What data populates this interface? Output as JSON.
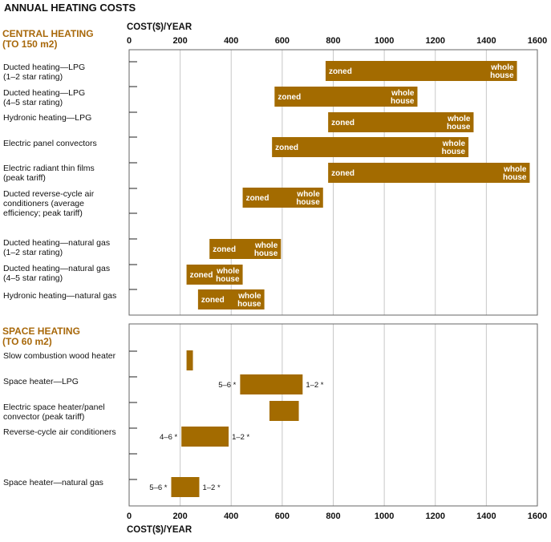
{
  "title": "ANNUAL HEATING COSTS",
  "colors": {
    "bar": "#a36b00",
    "section": "#a8680a",
    "grid": "#c8c8c8",
    "frame": "#666666"
  },
  "chart_data": [
    {
      "type": "bar",
      "orientation": "horizontal-range",
      "section_title": [
        "CENTRAL HEATING",
        "(TO 150 m2)"
      ],
      "xlabel": "COST($)/YEAR",
      "xlim": [
        0,
        1600
      ],
      "xticks": [
        "0",
        "200",
        "400",
        "600",
        "800",
        "1000",
        "1200",
        "1400",
        "1600"
      ],
      "grid": "vertical",
      "categories": [
        {
          "label": [
            "Ducted heating—LPG",
            "(1–2 star rating)"
          ],
          "start": 770,
          "end": 1520,
          "left_text": "zoned",
          "right_text": [
            "whole",
            "house"
          ]
        },
        {
          "label": [
            "Ducted heating—LPG",
            "(4–5 star rating)"
          ],
          "start": 570,
          "end": 1130,
          "left_text": "zoned",
          "right_text": [
            "whole",
            "house"
          ]
        },
        {
          "label": [
            "Hydronic heating—LPG"
          ],
          "start": 780,
          "end": 1350,
          "left_text": "zoned",
          "right_text": [
            "whole",
            "house"
          ]
        },
        {
          "label": [
            "Electric panel convectors"
          ],
          "start": 560,
          "end": 1330,
          "left_text": "zoned",
          "right_text": [
            "whole",
            "house"
          ]
        },
        {
          "label": [
            "Electric radiant thin films",
            "(peak tariff)"
          ],
          "start": 780,
          "end": 1570,
          "left_text": "zoned",
          "right_text": [
            "whole",
            "house"
          ]
        },
        {
          "label": [
            "Ducted reverse-cycle air",
            "conditioners (average",
            "efficiency; peak tariff)"
          ],
          "start": 445,
          "end": 760,
          "left_text": "zoned",
          "right_text": [
            "whole",
            "house"
          ]
        },
        {
          "label": [
            "Ducted heating—natural gas",
            "(1–2 star rating)"
          ],
          "start": 315,
          "end": 595,
          "left_text": "zoned",
          "right_text": [
            "whole",
            "house"
          ]
        },
        {
          "label": [
            "Ducted heating—natural gas",
            "(4–5 star rating)"
          ],
          "start": 225,
          "end": 445,
          "left_text": "zoned",
          "right_text": [
            "whole",
            "house"
          ]
        },
        {
          "label": [
            "Hydronic heating—natural gas"
          ],
          "start": 270,
          "end": 530,
          "left_text": "zoned",
          "right_text": [
            "whole",
            "house"
          ]
        }
      ]
    },
    {
      "type": "bar",
      "orientation": "horizontal-range",
      "section_title": [
        "SPACE HEATING",
        "(TO 60 m2)"
      ],
      "xlabel": "COST($)/YEAR",
      "xlim": [
        0,
        1600
      ],
      "xticks": [
        "0",
        "200",
        "400",
        "600",
        "800",
        "1000",
        "1200",
        "1400",
        "1600"
      ],
      "grid": "vertical",
      "categories": [
        {
          "label": [
            "Slow combustion wood heater"
          ],
          "start": 225,
          "end": 250,
          "before_text": "",
          "after_text": ""
        },
        {
          "label": [
            "Space heater—LPG"
          ],
          "start": 435,
          "end": 680,
          "before_text": "5–6 *",
          "after_text": "1–2 *"
        },
        {
          "label": [
            "Electric space heater/panel",
            "convector (peak tariff)"
          ],
          "start": 550,
          "end": 665,
          "before_text": "",
          "after_text": ""
        },
        {
          "label": [
            "Reverse-cycle air conditioners"
          ],
          "start": 205,
          "end": 390,
          "before_text": "4–6 *",
          "after_text": "1–2 *"
        },
        {
          "label": [
            "Space heater—natural gas"
          ],
          "start": 165,
          "end": 275,
          "before_text": "5–6 *",
          "after_text": "1–2 *"
        }
      ]
    }
  ]
}
